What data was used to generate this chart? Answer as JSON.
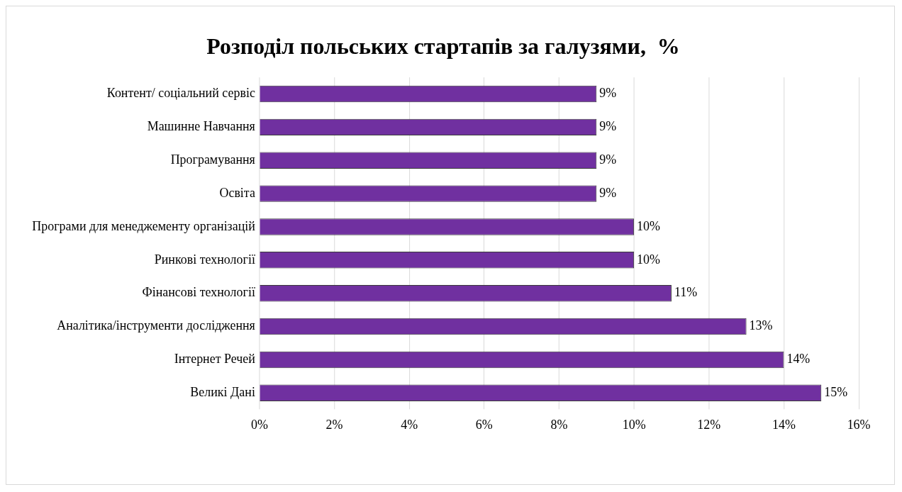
{
  "chart_data": {
    "type": "bar",
    "orientation": "horizontal",
    "title": "Розподіл польських стартапів за галузями,  %",
    "categories": [
      "Контент/ соціальний сервіс",
      "Машинне Навчання",
      "Програмування",
      "Освіта",
      "Програми для менеджементу організацій",
      "Ринкові технології",
      "Фінансові технології",
      "Аналітика/інструменти дослідження",
      "Інтернет Речей",
      "Великі Дані"
    ],
    "values": [
      9,
      9,
      9,
      9,
      10,
      10,
      11,
      13,
      14,
      15
    ],
    "value_labels": [
      "9%",
      "9%",
      "9%",
      "9%",
      "10%",
      "10%",
      "11%",
      "13%",
      "14%",
      "15%"
    ],
    "color": "#7030a0",
    "xlim": [
      0,
      16
    ],
    "xticks": [
      {
        "value": 0,
        "label": "0%"
      },
      {
        "value": 2,
        "label": "2%"
      },
      {
        "value": 4,
        "label": "4%"
      },
      {
        "value": 6,
        "label": "6%"
      },
      {
        "value": 8,
        "label": "8%"
      },
      {
        "value": 10,
        "label": "10%"
      },
      {
        "value": 12,
        "label": "12%"
      },
      {
        "value": 14,
        "label": "14%"
      },
      {
        "value": 16,
        "label": "16%"
      }
    ],
    "grid": "x",
    "legend": false
  }
}
